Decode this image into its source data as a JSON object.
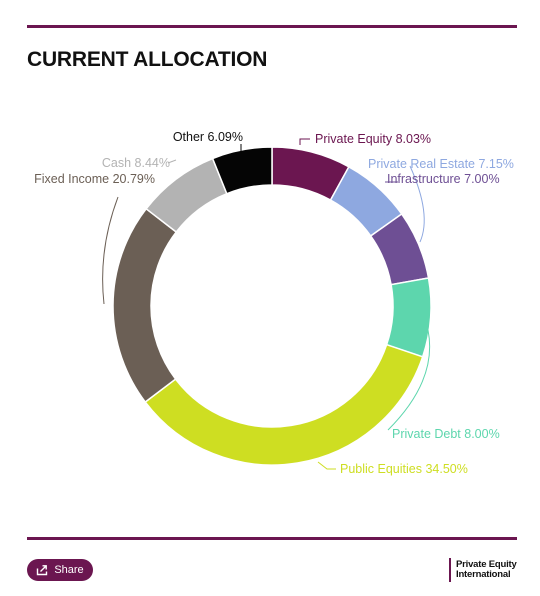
{
  "page": {
    "title": "CURRENT ALLOCATION",
    "share_label": "Share",
    "brand_line1": "Private Equity",
    "brand_line2": "International",
    "accent_color": "#6b1650"
  },
  "chart_data": {
    "type": "pie",
    "donut": true,
    "title": "CURRENT ALLOCATION",
    "slices": [
      {
        "label": "Private Equity",
        "value": 8.03,
        "display": "Private Equity 8.03%",
        "color": "#6b1650"
      },
      {
        "label": "Private Real Estate",
        "value": 7.15,
        "display": "Private Real Estate 7.15%",
        "color": "#8ea8e0"
      },
      {
        "label": "Infrastructure",
        "value": 7.0,
        "display": "Infrastructure 7.00%",
        "color": "#6e4f94"
      },
      {
        "label": "Private Debt",
        "value": 8.0,
        "display": "Private Debt 8.00%",
        "color": "#5dd6ad"
      },
      {
        "label": "Public Equities",
        "value": 34.5,
        "display": "Public Equities 34.50%",
        "color": "#cede22"
      },
      {
        "label": "Fixed Income",
        "value": 20.79,
        "display": "Fixed Income 20.79%",
        "color": "#6b5f55"
      },
      {
        "label": "Cash",
        "value": 8.44,
        "display": "Cash 8.44%",
        "color": "#b3b3b3"
      },
      {
        "label": "Other",
        "value": 6.09,
        "display": "Other 6.09%",
        "color": "#050505"
      }
    ]
  }
}
